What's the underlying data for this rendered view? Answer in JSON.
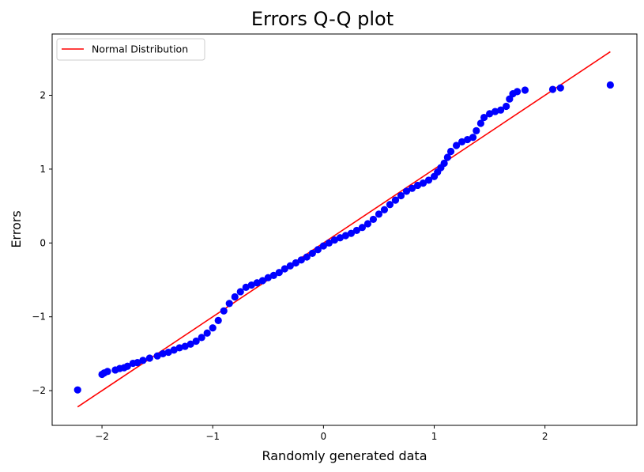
{
  "chart_data": {
    "type": "scatter",
    "title": "Errors Q-Q plot",
    "xlabel": "Randomly generated data",
    "ylabel": "Errors",
    "xlim": [
      -2.45,
      2.83
    ],
    "ylim": [
      -2.47,
      2.83
    ],
    "xticks": [
      -2,
      -1,
      0,
      1,
      2
    ],
    "yticks": [
      -2,
      -1,
      0,
      1,
      2
    ],
    "xtick_labels": [
      "−2",
      "−1",
      "0",
      "1",
      "2"
    ],
    "ytick_labels": [
      "−2",
      "−1",
      "0",
      "1",
      "2"
    ],
    "grid": false,
    "legend": {
      "placement": "top-left",
      "entries": [
        "Normal Distribution"
      ]
    },
    "series": [
      {
        "kind": "points",
        "color": "#0000ff",
        "points": [
          [
            -2.22,
            -1.99
          ],
          [
            -2.0,
            -1.78
          ],
          [
            -1.98,
            -1.76
          ],
          [
            -1.95,
            -1.74
          ],
          [
            -1.88,
            -1.72
          ],
          [
            -1.84,
            -1.7
          ],
          [
            -1.8,
            -1.69
          ],
          [
            -1.77,
            -1.67
          ],
          [
            -1.72,
            -1.63
          ],
          [
            -1.68,
            -1.62
          ],
          [
            -1.63,
            -1.59
          ],
          [
            -1.57,
            -1.56
          ],
          [
            -1.5,
            -1.53
          ],
          [
            -1.45,
            -1.5
          ],
          [
            -1.4,
            -1.48
          ],
          [
            -1.35,
            -1.45
          ],
          [
            -1.3,
            -1.42
          ],
          [
            -1.25,
            -1.4
          ],
          [
            -1.2,
            -1.37
          ],
          [
            -1.15,
            -1.33
          ],
          [
            -1.1,
            -1.28
          ],
          [
            -1.05,
            -1.22
          ],
          [
            -1.0,
            -1.15
          ],
          [
            -0.95,
            -1.05
          ],
          [
            -0.9,
            -0.92
          ],
          [
            -0.85,
            -0.82
          ],
          [
            -0.8,
            -0.73
          ],
          [
            -0.75,
            -0.66
          ],
          [
            -0.7,
            -0.6
          ],
          [
            -0.65,
            -0.57
          ],
          [
            -0.6,
            -0.54
          ],
          [
            -0.55,
            -0.51
          ],
          [
            -0.5,
            -0.47
          ],
          [
            -0.45,
            -0.44
          ],
          [
            -0.4,
            -0.4
          ],
          [
            -0.35,
            -0.35
          ],
          [
            -0.3,
            -0.31
          ],
          [
            -0.25,
            -0.27
          ],
          [
            -0.2,
            -0.23
          ],
          [
            -0.15,
            -0.19
          ],
          [
            -0.1,
            -0.14
          ],
          [
            -0.05,
            -0.09
          ],
          [
            0.0,
            -0.04
          ],
          [
            0.05,
            0.0
          ],
          [
            0.1,
            0.04
          ],
          [
            0.15,
            0.07
          ],
          [
            0.2,
            0.1
          ],
          [
            0.25,
            0.13
          ],
          [
            0.3,
            0.17
          ],
          [
            0.35,
            0.21
          ],
          [
            0.4,
            0.26
          ],
          [
            0.45,
            0.32
          ],
          [
            0.5,
            0.39
          ],
          [
            0.55,
            0.45
          ],
          [
            0.6,
            0.52
          ],
          [
            0.65,
            0.58
          ],
          [
            0.7,
            0.64
          ],
          [
            0.75,
            0.7
          ],
          [
            0.8,
            0.74
          ],
          [
            0.85,
            0.78
          ],
          [
            0.9,
            0.81
          ],
          [
            0.95,
            0.85
          ],
          [
            1.0,
            0.9
          ],
          [
            1.03,
            0.96
          ],
          [
            1.06,
            1.02
          ],
          [
            1.09,
            1.08
          ],
          [
            1.12,
            1.16
          ],
          [
            1.15,
            1.24
          ],
          [
            1.2,
            1.32
          ],
          [
            1.25,
            1.37
          ],
          [
            1.3,
            1.4
          ],
          [
            1.35,
            1.43
          ],
          [
            1.38,
            1.52
          ],
          [
            1.42,
            1.62
          ],
          [
            1.45,
            1.7
          ],
          [
            1.5,
            1.75
          ],
          [
            1.55,
            1.78
          ],
          [
            1.6,
            1.8
          ],
          [
            1.65,
            1.85
          ],
          [
            1.68,
            1.95
          ],
          [
            1.71,
            2.02
          ],
          [
            1.75,
            2.05
          ],
          [
            1.82,
            2.07
          ],
          [
            2.07,
            2.08
          ],
          [
            2.14,
            2.1
          ],
          [
            2.59,
            2.14
          ]
        ]
      },
      {
        "name": "Normal Distribution",
        "kind": "line",
        "color": "#ff0000",
        "points": [
          [
            -2.22,
            -2.22
          ],
          [
            2.59,
            2.59
          ]
        ]
      }
    ]
  }
}
